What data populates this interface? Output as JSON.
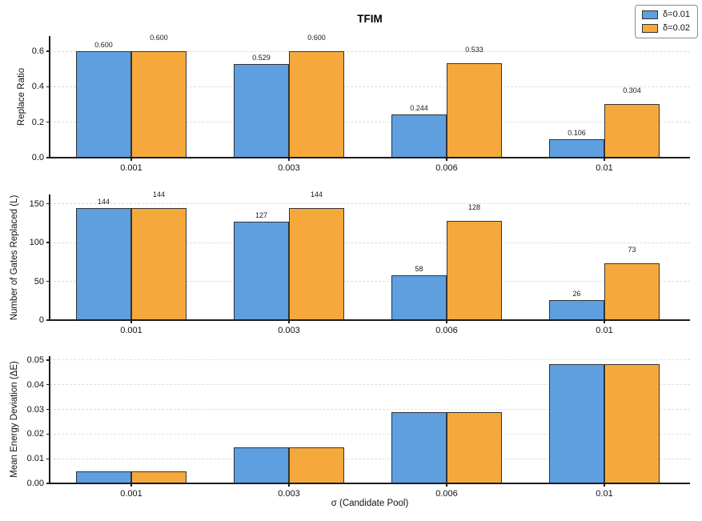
{
  "figure": {
    "title": "TFIM",
    "xlabel": "σ (Candidate Pool)",
    "background": "#ffffff",
    "colors": {
      "series1": "#5E9FE0",
      "series2": "#F5A93C",
      "bar_edge": "#333333",
      "grid": "#dedede",
      "axis": "#1c1c1c"
    },
    "legend": {
      "position": "top-right",
      "items": [
        {
          "label": "δ=0.01",
          "color": "#5E9FE0"
        },
        {
          "label": "δ=0.02",
          "color": "#F5A93C"
        }
      ]
    }
  },
  "chart_data": [
    {
      "type": "bar",
      "ylabel": "Replace Ratio",
      "categories": [
        "0.001",
        "0.003",
        "0.006",
        "0.01"
      ],
      "series": [
        {
          "name": "δ=0.01",
          "values": [
            0.6,
            0.529,
            0.244,
            0.106
          ],
          "labels": [
            "0.600",
            "0.529",
            "0.244",
            "0.106"
          ]
        },
        {
          "name": "δ=0.02",
          "values": [
            0.6,
            0.6,
            0.533,
            0.304
          ],
          "labels": [
            "0.600",
            "0.600",
            "0.533",
            "0.304"
          ]
        }
      ],
      "ylim": [
        0,
        0.686
      ],
      "yticks": [
        0.0,
        0.2,
        0.4,
        0.6
      ],
      "ytick_labels": [
        "0.0",
        "0.2",
        "0.4",
        "0.6"
      ],
      "grid": true
    },
    {
      "type": "bar",
      "ylabel": "Number of Gates Replaced (L)",
      "categories": [
        "0.001",
        "0.003",
        "0.006",
        "0.01"
      ],
      "series": [
        {
          "name": "δ=0.01",
          "values": [
            144,
            127,
            58,
            26
          ],
          "labels": [
            "144",
            "127",
            "58",
            "26"
          ]
        },
        {
          "name": "δ=0.02",
          "values": [
            144,
            144,
            128,
            73
          ],
          "labels": [
            "144",
            "144",
            "128",
            "73"
          ]
        }
      ],
      "ylim": [
        0,
        162
      ],
      "yticks": [
        0,
        50,
        100,
        150
      ],
      "ytick_labels": [
        "0",
        "50",
        "100",
        "150"
      ],
      "grid": true
    },
    {
      "type": "bar",
      "ylabel": "Mean Energy Deviation (ΔE)",
      "categories": [
        "0.001",
        "0.003",
        "0.006",
        "0.01"
      ],
      "series": [
        {
          "name": "δ=0.01",
          "values": [
            0.0049,
            0.0145,
            0.029,
            0.0485
          ]
        },
        {
          "name": "δ=0.02",
          "values": [
            0.0049,
            0.0145,
            0.029,
            0.0485
          ]
        }
      ],
      "ylim": [
        0,
        0.0516
      ],
      "yticks": [
        0.0,
        0.01,
        0.02,
        0.03,
        0.04,
        0.05
      ],
      "ytick_labels": [
        "0.00",
        "0.01",
        "0.02",
        "0.03",
        "0.04",
        "0.05"
      ],
      "grid": true
    }
  ]
}
